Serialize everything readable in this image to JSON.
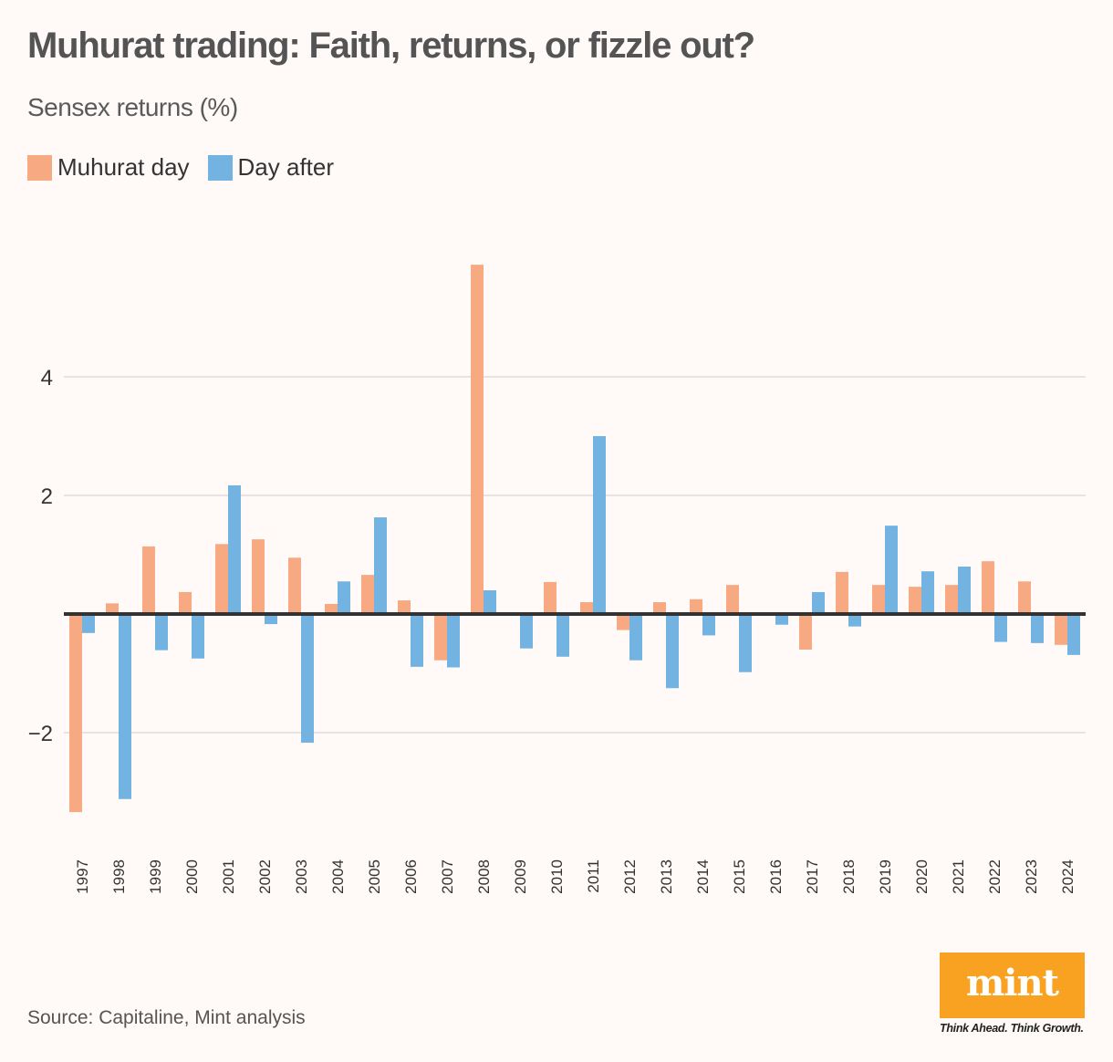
{
  "header": {
    "title": "Muhurat trading: Faith, returns, or fizzle out?",
    "subtitle": "Sensex returns (%)"
  },
  "legend": [
    {
      "label": "Muhurat day",
      "color": "#f7aa82"
    },
    {
      "label": "Day after",
      "color": "#72b3e2"
    }
  ],
  "footer": {
    "source": "Source: Capitaline, Mint analysis",
    "logo_text": "mint",
    "tagline": "Think Ahead. Think Growth."
  },
  "colors": {
    "background": "#fff9f8",
    "muhurat": "#f7aa82",
    "day_after": "#72b3e2",
    "zero_line": "#333333",
    "grid": "#e6e3e2",
    "logo": "#f9a120"
  },
  "chart_data": {
    "type": "bar",
    "title": "Muhurat trading: Faith, returns, or fizzle out?",
    "subtitle": "Sensex returns (%)",
    "xlabel": "",
    "ylabel": "Sensex returns (%)",
    "ylim": [
      -3.4,
      6.0
    ],
    "yticks": [
      -2,
      2,
      4
    ],
    "grid": true,
    "legend_position": "top-left",
    "categories": [
      "1997",
      "1998",
      "1999",
      "2000",
      "2001",
      "2002",
      "2003",
      "2004",
      "2005",
      "2006",
      "2007",
      "2008",
      "2009",
      "2010",
      "2011",
      "2012",
      "2013",
      "2014",
      "2015",
      "2016",
      "2017",
      "2018",
      "2019",
      "2020",
      "2021",
      "2022",
      "2023",
      "2024"
    ],
    "series": [
      {
        "name": "Muhurat day",
        "color": "#f7aa82",
        "values": [
          -3.34,
          0.18,
          1.14,
          0.37,
          1.18,
          1.26,
          0.95,
          0.17,
          0.66,
          0.23,
          -0.78,
          5.89,
          0.0,
          0.54,
          0.2,
          -0.27,
          0.2,
          0.25,
          0.49,
          0.0,
          -0.6,
          0.71,
          0.49,
          0.46,
          0.49,
          0.89,
          0.55,
          -0.52
        ]
      },
      {
        "name": "Day after",
        "color": "#72b3e2",
        "values": [
          -0.32,
          -3.12,
          -0.61,
          -0.75,
          2.17,
          -0.17,
          -2.17,
          0.55,
          1.63,
          -0.89,
          -0.9,
          0.4,
          -0.58,
          -0.72,
          3.0,
          -0.78,
          -1.25,
          -0.36,
          -0.98,
          -0.18,
          0.37,
          -0.21,
          1.49,
          0.72,
          0.8,
          -0.47,
          -0.49,
          -0.69
        ]
      }
    ]
  }
}
